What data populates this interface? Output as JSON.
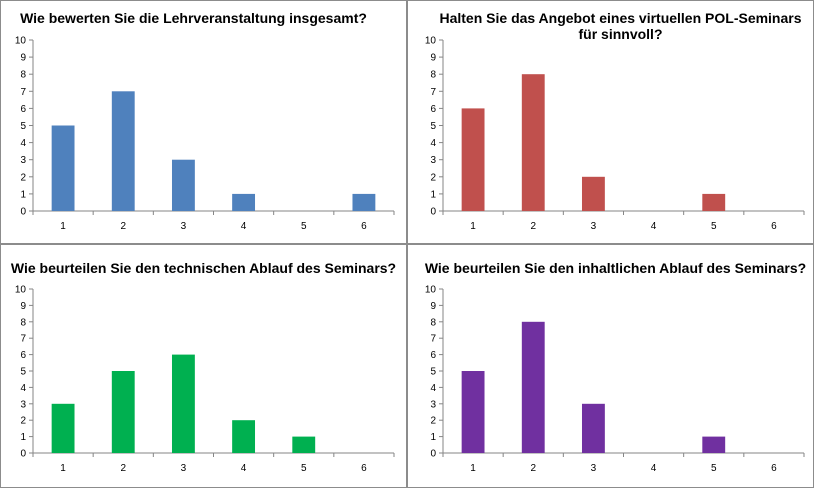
{
  "chart_data": [
    {
      "type": "bar",
      "title": "Wie bewerten Sie die Lehrveranstaltung insgesamt?",
      "categories": [
        "1",
        "2",
        "3",
        "4",
        "5",
        "6"
      ],
      "values": [
        5,
        7,
        3,
        1,
        0,
        1
      ],
      "ylim": [
        0,
        10
      ],
      "yticks": [
        "0",
        "1",
        "2",
        "3",
        "4",
        "5",
        "6",
        "7",
        "8",
        "9",
        "10"
      ],
      "color": "#4f81bd",
      "grid": false,
      "legend": "none"
    },
    {
      "type": "bar",
      "title": "Halten Sie das Angebot eines virtuellen POL-Seminars für sinnvoll?",
      "title_lines": [
        "Halten Sie das Angebot eines virtuellen POL-Seminars",
        "für sinnvoll?"
      ],
      "categories": [
        "1",
        "2",
        "3",
        "4",
        "5",
        "6"
      ],
      "values": [
        6,
        8,
        2,
        0,
        1,
        0
      ],
      "ylim": [
        0,
        10
      ],
      "yticks": [
        "0",
        "1",
        "2",
        "3",
        "4",
        "5",
        "6",
        "7",
        "8",
        "9",
        "10"
      ],
      "color": "#c0504d",
      "grid": false,
      "legend": "none"
    },
    {
      "type": "bar",
      "title": "Wie beurteilen Sie den technischen Ablauf des Seminars?",
      "categories": [
        "1",
        "2",
        "3",
        "4",
        "5",
        "6"
      ],
      "values": [
        3,
        5,
        6,
        2,
        1,
        0
      ],
      "ylim": [
        0,
        10
      ],
      "yticks": [
        "0",
        "1",
        "2",
        "3",
        "4",
        "5",
        "6",
        "7",
        "8",
        "9",
        "10"
      ],
      "color": "#00b050",
      "grid": false,
      "legend": "none"
    },
    {
      "type": "bar",
      "title": "Wie beurteilen Sie den inhaltlichen Ablauf des Seminars?",
      "categories": [
        "1",
        "2",
        "3",
        "4",
        "5",
        "6"
      ],
      "values": [
        5,
        8,
        3,
        0,
        1,
        0
      ],
      "ylim": [
        0,
        10
      ],
      "yticks": [
        "0",
        "1",
        "2",
        "3",
        "4",
        "5",
        "6",
        "7",
        "8",
        "9",
        "10"
      ],
      "color": "#7030a0",
      "grid": false,
      "legend": "none"
    }
  ]
}
